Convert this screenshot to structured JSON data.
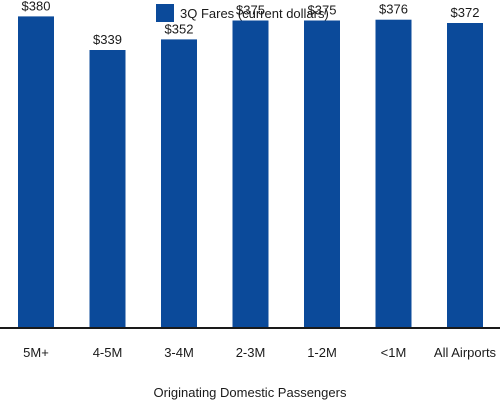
{
  "chart_data": {
    "type": "bar",
    "categories": [
      "5M+",
      "4-5M",
      "3-4M",
      "2-3M",
      "1-2M",
      "<1M",
      "All Airports"
    ],
    "series": [
      {
        "name": "3Q Fares (current dollars)",
        "values": [
          380,
          339,
          352,
          375,
          375,
          376,
          372
        ],
        "value_labels": [
          "$380",
          "$339",
          "$352",
          "$375",
          "$375",
          "$376",
          "$372"
        ],
        "color": "#0b4a9a"
      }
    ],
    "title": "",
    "xlabel": "Originating Domestic Passengers",
    "ylabel": "",
    "ylim": [
      0,
      400
    ],
    "grid": false,
    "legend_position": "top-center",
    "axis_color": "#1a1a1a"
  }
}
